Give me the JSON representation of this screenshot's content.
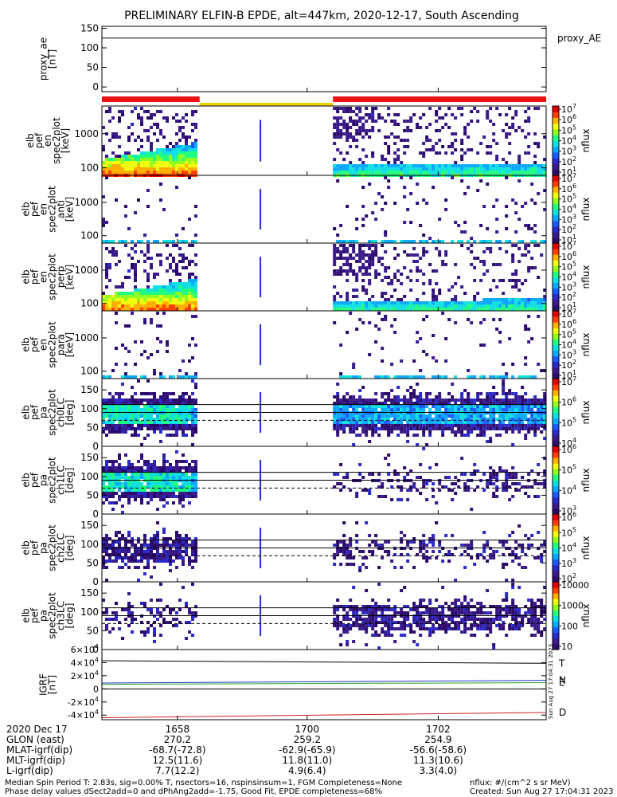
{
  "title": "PRELIMINARY ELFIN-B EPDE, alt=447km, 2020-12-17, South Ascending",
  "stamp": "Sun Aug 27 17:04:31 2023",
  "colors": {
    "ae_bar_red": "#ee1111",
    "ae_bar_yellow": "#f5d000",
    "T": "#000000",
    "N": "#2233cc",
    "E": "#22aa22",
    "D": "#cc2222"
  },
  "chart_data": [
    {
      "type": "line",
      "panel": "proxy_ae",
      "ylabel_lines": [
        "proxy_ae",
        "[nT]"
      ],
      "legend": "proxy_AE",
      "ylim": [
        -12,
        155
      ],
      "yticks": [
        0,
        50,
        100,
        150
      ],
      "series": [
        {
          "name": "proxy_AE",
          "x": [
            0,
            1
          ],
          "values": [
            125,
            125
          ]
        }
      ],
      "bar_segments": [
        {
          "color": "red",
          "from": 0.0,
          "to": 0.22
        },
        {
          "color": "yellow",
          "from": 0.22,
          "to": 0.52
        },
        {
          "color": "red",
          "from": 0.52,
          "to": 1.0
        }
      ]
    },
    {
      "type": "heatmap",
      "panel": "en_spec2plot_omni",
      "ylabel_lines": [
        "elb",
        "pef",
        "en",
        "spec2plot",
        "[keV]"
      ],
      "yscale": "log",
      "ylim": [
        60,
        6500
      ],
      "yticks": [
        100,
        1000
      ],
      "colorbar": {
        "label": "nflux",
        "ticks": [
          "10^1",
          "10^2",
          "10^3",
          "10^4",
          "10^5",
          "10^6",
          "10^7"
        ]
      },
      "intervals": [
        {
          "from": 0.0,
          "to": 0.215,
          "level": "high"
        },
        {
          "from": 0.355,
          "to": 0.358,
          "level": "spike"
        },
        {
          "from": 0.52,
          "to": 1.0,
          "level": "medium"
        }
      ]
    },
    {
      "type": "heatmap",
      "panel": "en_spec2plot_anti",
      "ylabel_lines": [
        "elb",
        "pef",
        "en",
        "spec2plot",
        "anti",
        "[keV]"
      ],
      "yscale": "log",
      "ylim": [
        60,
        6500
      ],
      "yticks": [
        100,
        1000
      ],
      "colorbar": {
        "label": "nflux",
        "ticks": [
          "10^1",
          "10^2",
          "10^3",
          "10^4",
          "10^5",
          "10^6",
          "10^7"
        ]
      },
      "intervals": [
        {
          "from": 0.0,
          "to": 0.215,
          "level": "low"
        },
        {
          "from": 0.355,
          "to": 0.358,
          "level": "spike"
        },
        {
          "from": 0.52,
          "to": 1.0,
          "level": "low"
        }
      ]
    },
    {
      "type": "heatmap",
      "panel": "en_spec2plot_perp",
      "ylabel_lines": [
        "elb",
        "pef",
        "en",
        "spec2plot",
        "perp",
        "[keV]"
      ],
      "yscale": "log",
      "ylim": [
        60,
        6500
      ],
      "yticks": [
        100,
        1000
      ],
      "colorbar": {
        "label": "nflux",
        "ticks": [
          "10^1",
          "10^2",
          "10^3",
          "10^4",
          "10^5",
          "10^6",
          "10^7"
        ]
      },
      "intervals": [
        {
          "from": 0.0,
          "to": 0.215,
          "level": "high"
        },
        {
          "from": 0.355,
          "to": 0.358,
          "level": "spike"
        },
        {
          "from": 0.52,
          "to": 1.0,
          "level": "medium"
        }
      ]
    },
    {
      "type": "heatmap",
      "panel": "en_spec2plot_para",
      "ylabel_lines": [
        "elb",
        "pef",
        "en",
        "spec2plot",
        "para",
        "[keV]"
      ],
      "yscale": "log",
      "ylim": [
        60,
        6500
      ],
      "yticks": [
        100,
        1000
      ],
      "colorbar": {
        "label": "nflux",
        "ticks": [
          "10^1",
          "10^2",
          "10^3",
          "10^4",
          "10^5",
          "10^6",
          "10^7"
        ]
      },
      "intervals": [
        {
          "from": 0.0,
          "to": 0.215,
          "level": "low"
        },
        {
          "from": 0.355,
          "to": 0.358,
          "level": "spike"
        },
        {
          "from": 0.52,
          "to": 1.0,
          "level": "low"
        }
      ]
    },
    {
      "type": "heatmap",
      "panel": "pa_spec2plot_ch0LC",
      "ylabel_lines": [
        "elb",
        "pef",
        "pa",
        "spec2plot",
        "ch0LC",
        "[deg]"
      ],
      "ylim": [
        0,
        180
      ],
      "yticks": [
        0,
        50,
        100,
        150
      ],
      "hlines_solid": [
        90,
        111
      ],
      "hlines_dashed": [
        69
      ],
      "colorbar": {
        "label": "nflux",
        "ticks": [
          "10^4",
          "10^5",
          "10^6",
          "10^7"
        ]
      },
      "intervals": [
        {
          "from": 0.0,
          "to": 0.215,
          "level": "high"
        },
        {
          "from": 0.355,
          "to": 0.358,
          "level": "spike"
        },
        {
          "from": 0.52,
          "to": 1.0,
          "level": "high"
        }
      ]
    },
    {
      "type": "heatmap",
      "panel": "pa_spec2plot_ch1LC",
      "ylabel_lines": [
        "elb",
        "pef",
        "pa",
        "spec2plot",
        "ch1LC",
        "[deg]"
      ],
      "ylim": [
        0,
        180
      ],
      "yticks": [
        0,
        50,
        100,
        150
      ],
      "hlines_solid": [
        90,
        111
      ],
      "hlines_dashed": [
        69
      ],
      "colorbar": {
        "label": "nflux",
        "ticks": [
          "10^3",
          "10^4",
          "10^5",
          "10^6"
        ]
      },
      "intervals": [
        {
          "from": 0.0,
          "to": 0.215,
          "level": "high"
        },
        {
          "from": 0.355,
          "to": 0.358,
          "level": "spike"
        },
        {
          "from": 0.52,
          "to": 1.0,
          "level": "low"
        }
      ]
    },
    {
      "type": "heatmap",
      "panel": "pa_spec2plot_ch2LC",
      "ylabel_lines": [
        "elb",
        "pef",
        "pa",
        "spec2plot",
        "ch2LC",
        "[deg]"
      ],
      "ylim": [
        0,
        180
      ],
      "yticks": [
        0,
        50,
        100,
        150
      ],
      "hlines_solid": [
        90,
        111
      ],
      "hlines_dashed": [
        69
      ],
      "colorbar": {
        "label": "nflux",
        "ticks": [
          "10^2",
          "10^3",
          "10^4",
          "10^5",
          "10^6"
        ]
      },
      "intervals": [
        {
          "from": 0.0,
          "to": 0.215,
          "level": "medium"
        },
        {
          "from": 0.355,
          "to": 0.358,
          "level": "spike"
        },
        {
          "from": 0.52,
          "to": 1.0,
          "level": "low"
        }
      ]
    },
    {
      "type": "heatmap",
      "panel": "pa_spec2plot_ch3LC",
      "ylabel_lines": [
        "elb",
        "pef",
        "pa",
        "spec2plot",
        "ch3LC",
        "[deg]"
      ],
      "ylim": [
        0,
        180
      ],
      "yticks": [
        0,
        50,
        100,
        150
      ],
      "hlines_solid": [
        90,
        111
      ],
      "hlines_dashed": [
        69
      ],
      "colorbar": {
        "label": "nflux",
        "ticks": [
          "10",
          "100",
          "1000",
          "10000"
        ]
      },
      "intervals": [
        {
          "from": 0.0,
          "to": 0.215,
          "level": "low"
        },
        {
          "from": 0.355,
          "to": 0.358,
          "level": "spike"
        },
        {
          "from": 0.52,
          "to": 1.0,
          "level": "medium"
        }
      ]
    },
    {
      "type": "line",
      "panel": "igrf",
      "ylabel_lines": [
        "IGRF",
        "[nT]"
      ],
      "ylim": [
        -47000,
        60000
      ],
      "yticks": [
        "-4×10^4",
        "-2×10^4",
        "0",
        "2×10^4",
        "4×10^4",
        "6×10^4"
      ],
      "ytick_values": [
        -40000,
        -20000,
        0,
        20000,
        40000,
        60000
      ],
      "series": [
        {
          "name": "T",
          "x": [
            0,
            1
          ],
          "values": [
            43000,
            39000
          ]
        },
        {
          "name": "N",
          "x": [
            0,
            1
          ],
          "values": [
            9000,
            13000
          ]
        },
        {
          "name": "E",
          "x": [
            0,
            1
          ],
          "values": [
            7000,
            9500
          ]
        },
        {
          "name": "D",
          "x": [
            0,
            1
          ],
          "values": [
            -44000,
            -36000
          ]
        }
      ]
    }
  ],
  "xaxis": {
    "date": "2020 Dec 17",
    "row_labels": [
      "GLON (east)",
      "MLAT-igrf(dip)",
      "MLT-igrf(dip)",
      "L-igrf(dip)"
    ],
    "ticks": [
      {
        "pos": 0.17,
        "time": "1658",
        "glon": "270.2",
        "mlat": "-68.7(-72.8)",
        "mlt": "12.5(11.6)",
        "l": "7.7(12.2)"
      },
      {
        "pos": 0.462,
        "time": "1700",
        "glon": "259.2",
        "mlat": "-62.9(-65.9)",
        "mlt": "11.8(11.0)",
        "l": "4.9(6.4)"
      },
      {
        "pos": 0.757,
        "time": "1702",
        "glon": "254.9",
        "mlat": "-56.6(-58.6)",
        "mlt": "11.3(10.6)",
        "l": "3.3(4.0)"
      }
    ]
  },
  "footer": {
    "line1": "Median Spin Period T: 2.83s, sig=0.00% T, nsectors=16, nspinsinsum=1, FGM Completeness=None",
    "line2": "Phase delay values dSect2add=0 and dPhAng2add=-1.75, Good Fit, EPDE completeness=68%",
    "units": "nflux: #/(cm^2 s sr MeV)",
    "created": "Created: Sun Aug 27 17:04:31 2023"
  }
}
